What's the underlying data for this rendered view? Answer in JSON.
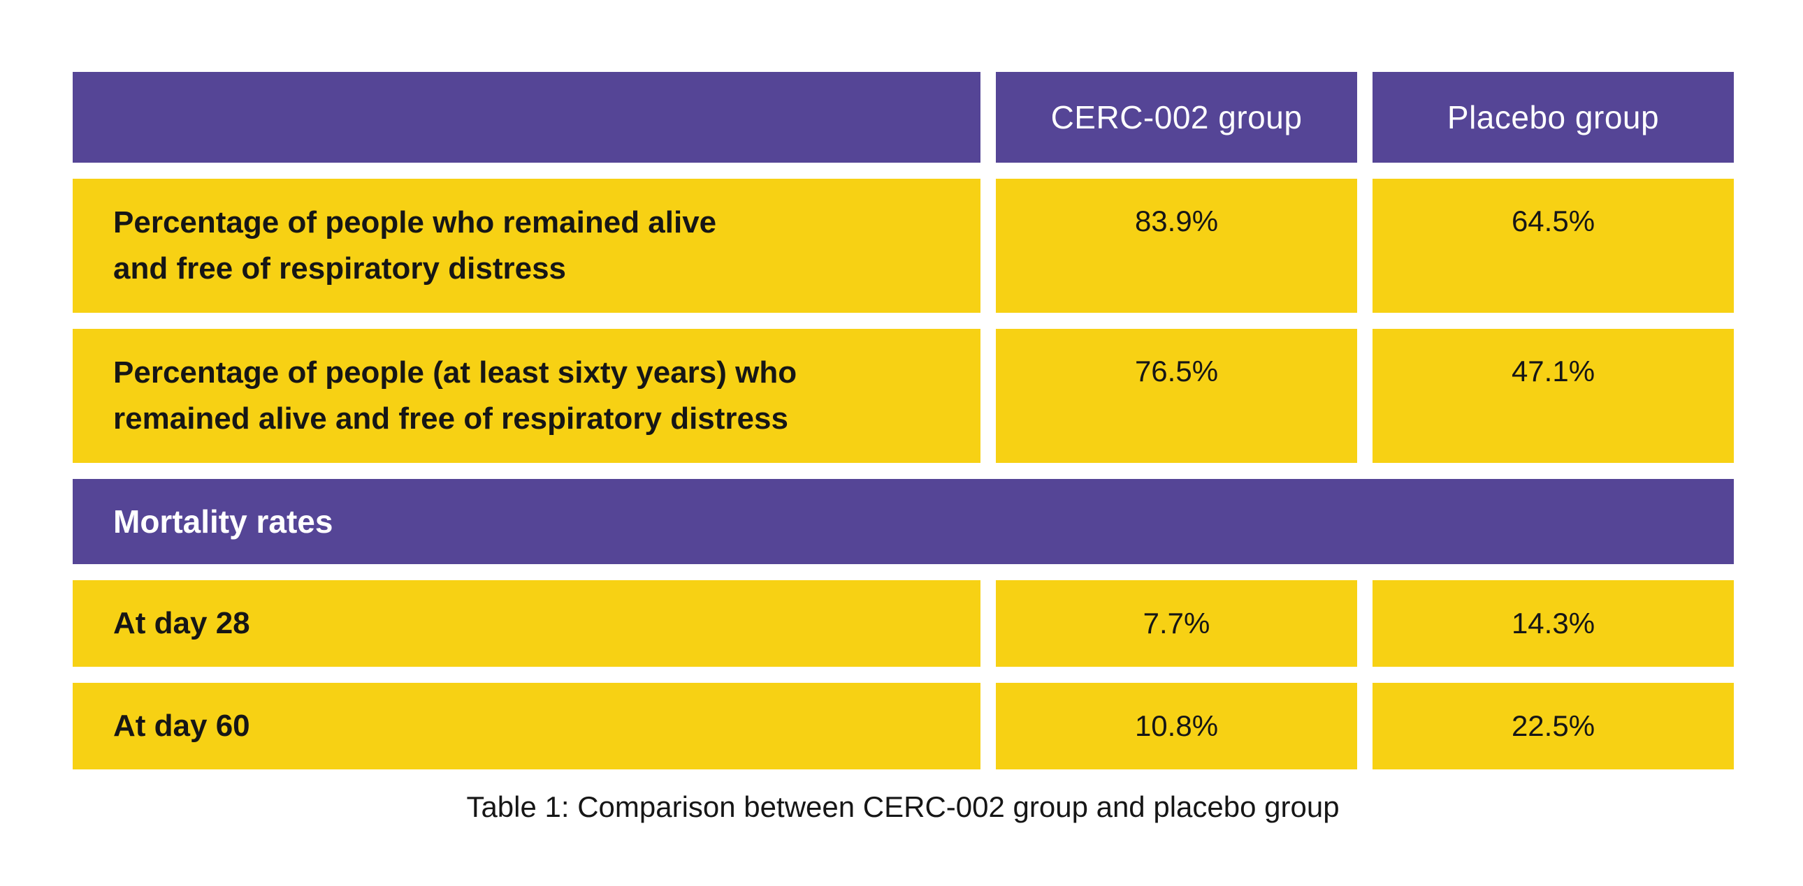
{
  "colors": {
    "purple": "#554596",
    "yellow": "#F7D114",
    "header_text": "#ffffff",
    "body_text": "#161616",
    "background": "#ffffff"
  },
  "header": {
    "group1": "CERC-002 group",
    "group2": "Placebo group"
  },
  "rows": [
    {
      "lines": [
        "Percentage of people who remained alive",
        "and free of respiratory distress"
      ],
      "cerc": "83.9%",
      "placebo": "64.5%"
    },
    {
      "lines": [
        "Percentage of people (at least sixty years) who",
        "remained alive and free of respiratory distress"
      ],
      "cerc": "76.5%",
      "placebo": "47.1%"
    },
    {
      "label": "At day 28",
      "cerc": "7.7%",
      "placebo": "14.3%"
    },
    {
      "label": "At day 60",
      "cerc": "10.8%",
      "placebo": "22.5%"
    }
  ],
  "section_header": "Mortality rates",
  "caption": "Table 1: Comparison between CERC-002 group and placebo group",
  "chart_data": {
    "type": "table",
    "title": "Table 1: Comparison between CERC-002 group and placebo group",
    "columns": [
      "",
      "CERC-002 group",
      "Placebo group"
    ],
    "sections": [
      {
        "section_label": "",
        "rows": [
          {
            "label": "Percentage of people who remained alive and free of respiratory distress",
            "values": {
              "CERC-002 group": "83.9%",
              "Placebo group": "64.5%"
            }
          },
          {
            "label": "Percentage of people (at least sixty years) who remained alive and free of respiratory distress",
            "values": {
              "CERC-002 group": "76.5%",
              "Placebo group": "47.1%"
            }
          }
        ]
      },
      {
        "section_label": "Mortality rates",
        "rows": [
          {
            "label": "At day 28",
            "values": {
              "CERC-002 group": "7.7%",
              "Placebo group": "14.3%"
            }
          },
          {
            "label": "At day 60",
            "values": {
              "CERC-002 group": "10.8%",
              "Placebo group": "22.5%"
            }
          }
        ]
      }
    ],
    "layout": {
      "header_background": "#554596",
      "row_background": "#F7D114",
      "grid": "off",
      "legend": "none"
    }
  }
}
